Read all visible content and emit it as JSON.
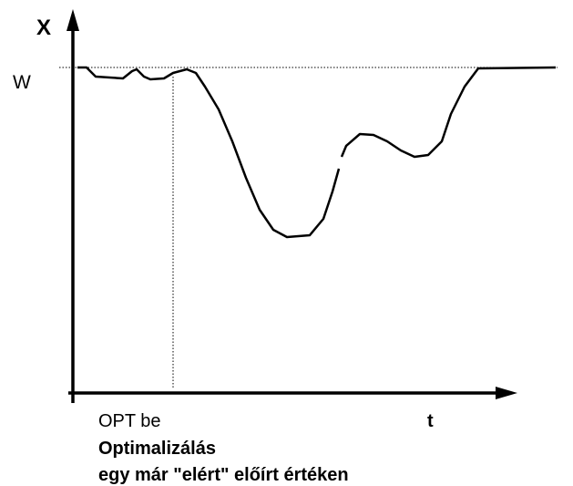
{
  "axes": {
    "y_label": "X",
    "x_label": "t"
  },
  "setpoint_label": "W",
  "event_label": "OPT be",
  "caption": {
    "title": "Optimalizálás",
    "subtitle": "egy már \"elért\" előírt értéken"
  }
}
